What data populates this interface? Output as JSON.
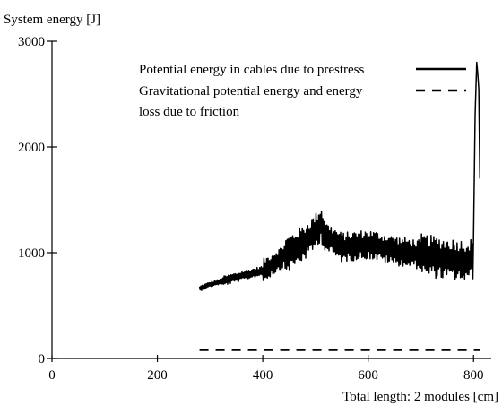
{
  "chart_data": {
    "type": "line",
    "title": "",
    "ylabel": "System energy [J]",
    "xlabel": "Total length: 2 modules [cm]",
    "xlim": [
      0,
      820
    ],
    "ylim": [
      0,
      3000
    ],
    "x_ticks": [
      0,
      200,
      400,
      600,
      800
    ],
    "y_ticks": [
      0,
      1000,
      2000,
      3000
    ],
    "x_tick_labels": [
      "0",
      "200",
      "400",
      "600",
      "800"
    ],
    "y_tick_labels": [
      "0",
      "1000",
      "2000",
      "3000"
    ],
    "grid": false,
    "legend_position": "top-right",
    "legend": [
      {
        "label": "Potential energy in cables due to prestress",
        "style": "solid"
      },
      {
        "label_lines": [
          "Gravitational potential energy and energy",
          "loss due to friction"
        ],
        "style": "dashed"
      }
    ],
    "series": [
      {
        "name": "Potential energy in cables due to prestress",
        "style": "solid",
        "color": "#000000",
        "x_range": [
          280,
          812
        ],
        "anchors": [
          [
            280,
            660
          ],
          [
            300,
            700
          ],
          [
            330,
            740
          ],
          [
            360,
            780
          ],
          [
            400,
            830
          ],
          [
            420,
            900
          ],
          [
            450,
            1000
          ],
          [
            480,
            1100
          ],
          [
            500,
            1200
          ],
          [
            510,
            1280
          ],
          [
            520,
            1150
          ],
          [
            550,
            1050
          ],
          [
            600,
            1080
          ],
          [
            650,
            1020
          ],
          [
            700,
            980
          ],
          [
            750,
            940
          ],
          [
            790,
            920
          ],
          [
            800,
            950
          ],
          [
            803,
            2300
          ],
          [
            806,
            2800
          ],
          [
            808,
            2700
          ],
          [
            810,
            2550
          ],
          [
            812,
            1700
          ]
        ],
        "min": 540,
        "max": 2880
      },
      {
        "name": "Gravitational potential energy and energy loss due to friction",
        "style": "dashed",
        "color": "#000000",
        "x": [
          280,
          812
        ],
        "values": [
          80,
          80
        ]
      }
    ]
  }
}
